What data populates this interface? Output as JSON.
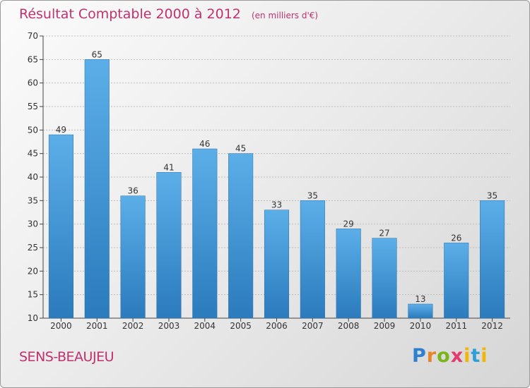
{
  "chart_data": {
    "type": "bar",
    "title": "Résultat Comptable 2000 à 2012",
    "subtitle": "(en milliers d'€)",
    "categories": [
      "2000",
      "2001",
      "2002",
      "2003",
      "2004",
      "2005",
      "2006",
      "2007",
      "2008",
      "2009",
      "2010",
      "2011",
      "2012"
    ],
    "values": [
      49,
      65,
      36,
      41,
      46,
      45,
      33,
      35,
      29,
      27,
      13,
      26,
      35
    ],
    "ylim": [
      10,
      70
    ],
    "yticks": [
      10,
      15,
      20,
      25,
      30,
      35,
      40,
      45,
      50,
      55,
      60,
      65,
      70
    ],
    "grid": true,
    "colors": {
      "bar_top": "#5caee8",
      "bar_bottom": "#2d7fc0",
      "text_accent": "#c0326e"
    }
  },
  "place": "SENS-BEAUJEU",
  "logo": {
    "p": "P",
    "r": "r",
    "o": "o",
    "x": "x",
    "i": "i",
    "t": "t",
    "i2": "i"
  }
}
